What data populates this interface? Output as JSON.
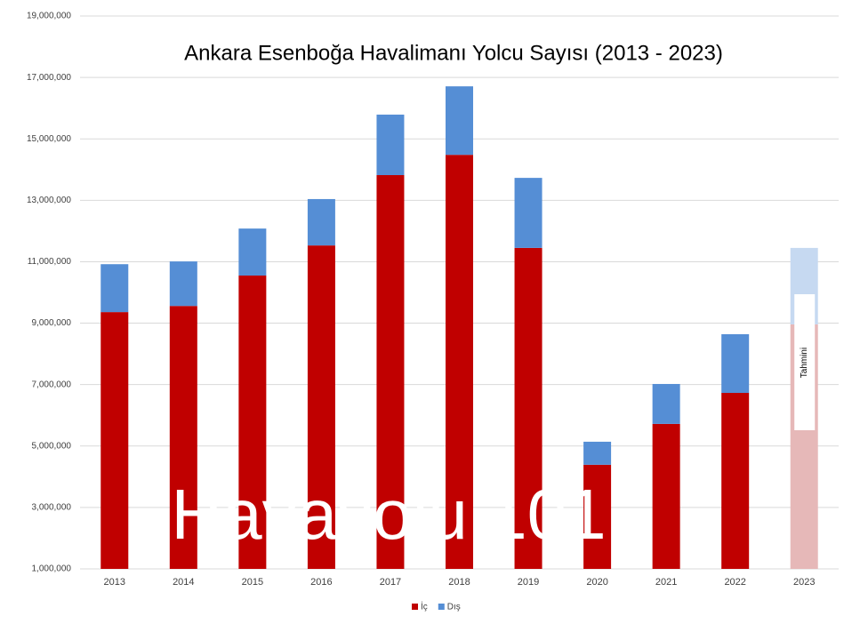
{
  "chart_data": {
    "type": "stacked_bar",
    "title": "Ankara Esenboğa Havalimanı Yolcu Sayısı (2013 - 2023)",
    "categories": [
      "2013",
      "2014",
      "2015",
      "2016",
      "2017",
      "2018",
      "2019",
      "2020",
      "2021",
      "2022",
      "2023"
    ],
    "series": [
      {
        "name": "İç",
        "color": "#c00000",
        "colors": [
          "#c00000",
          "#c00000",
          "#c00000",
          "#c00000",
          "#c00000",
          "#c00000",
          "#c00000",
          "#c00000",
          "#c00000",
          "#c00000",
          "#e6b8b8"
        ],
        "values": [
          9360000,
          9560000,
          10550000,
          11530000,
          13820000,
          14480000,
          11450000,
          4390000,
          5720000,
          6730000,
          8960000
        ]
      },
      {
        "name": "Dış",
        "color": "#558ed5",
        "colors": [
          "#558ed5",
          "#558ed5",
          "#558ed5",
          "#558ed5",
          "#558ed5",
          "#558ed5",
          "#558ed5",
          "#558ed5",
          "#558ed5",
          "#558ed5",
          "#c6d9f1"
        ],
        "values": [
          1560000,
          1450000,
          1530000,
          1510000,
          1970000,
          2230000,
          2280000,
          750000,
          1300000,
          1910000,
          2490000
        ]
      }
    ],
    "ylim": [
      1000000,
      19000000
    ],
    "yticks": [
      {
        "value": 1000000,
        "label": "1,000,000"
      },
      {
        "value": 3000000,
        "label": "3,000,000"
      },
      {
        "value": 5000000,
        "label": "5,000,000"
      },
      {
        "value": 7000000,
        "label": "7,000,000"
      },
      {
        "value": 9000000,
        "label": "9,000,000"
      },
      {
        "value": 11000000,
        "label": "11,000,000"
      },
      {
        "value": 13000000,
        "label": "13,000,000"
      },
      {
        "value": 15000000,
        "label": "15,000,000"
      },
      {
        "value": 17000000,
        "label": "17,000,000"
      },
      {
        "value": 19000000,
        "label": "19,000,000"
      }
    ],
    "grid": true,
    "legend": "bottom",
    "annotation": "Tahmini",
    "watermark": "Havayolu 101"
  }
}
